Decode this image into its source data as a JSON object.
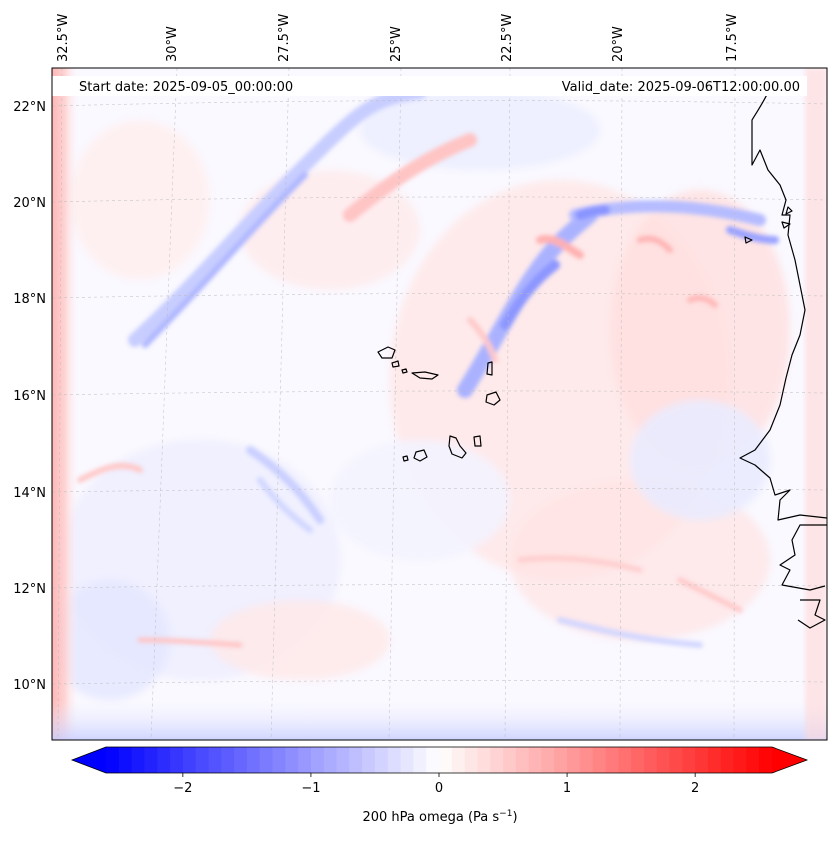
{
  "header": {
    "start_date": "Start date: 2025-09-05_00:00:00",
    "valid_date": "Valid_date: 2025-09-06T12:00:00.00"
  },
  "axes": {
    "lon_labels": [
      "32.5°W",
      "30°W",
      "27.5°W",
      "25°W",
      "22.5°W",
      "20°W",
      "17.5°W"
    ],
    "lat_labels": [
      "22°N",
      "20°N",
      "18°N",
      "16°N",
      "14°N",
      "12°N",
      "10°N"
    ]
  },
  "colorbar": {
    "tick_labels": [
      "−2",
      "−1",
      "0",
      "1",
      "2"
    ],
    "ticks": [
      -2,
      -1,
      0,
      1,
      2
    ],
    "min": -2.6,
    "max": 2.6,
    "label_main": "200 hPa omega (Pa s",
    "label_exp": "−1",
    "label_end": ")",
    "negative_color": "#0000ff",
    "positive_color": "#ff0000",
    "center_color": "#ffffff"
  },
  "field": {
    "name": "200 hPa omega",
    "units": "Pa s−1"
  }
}
